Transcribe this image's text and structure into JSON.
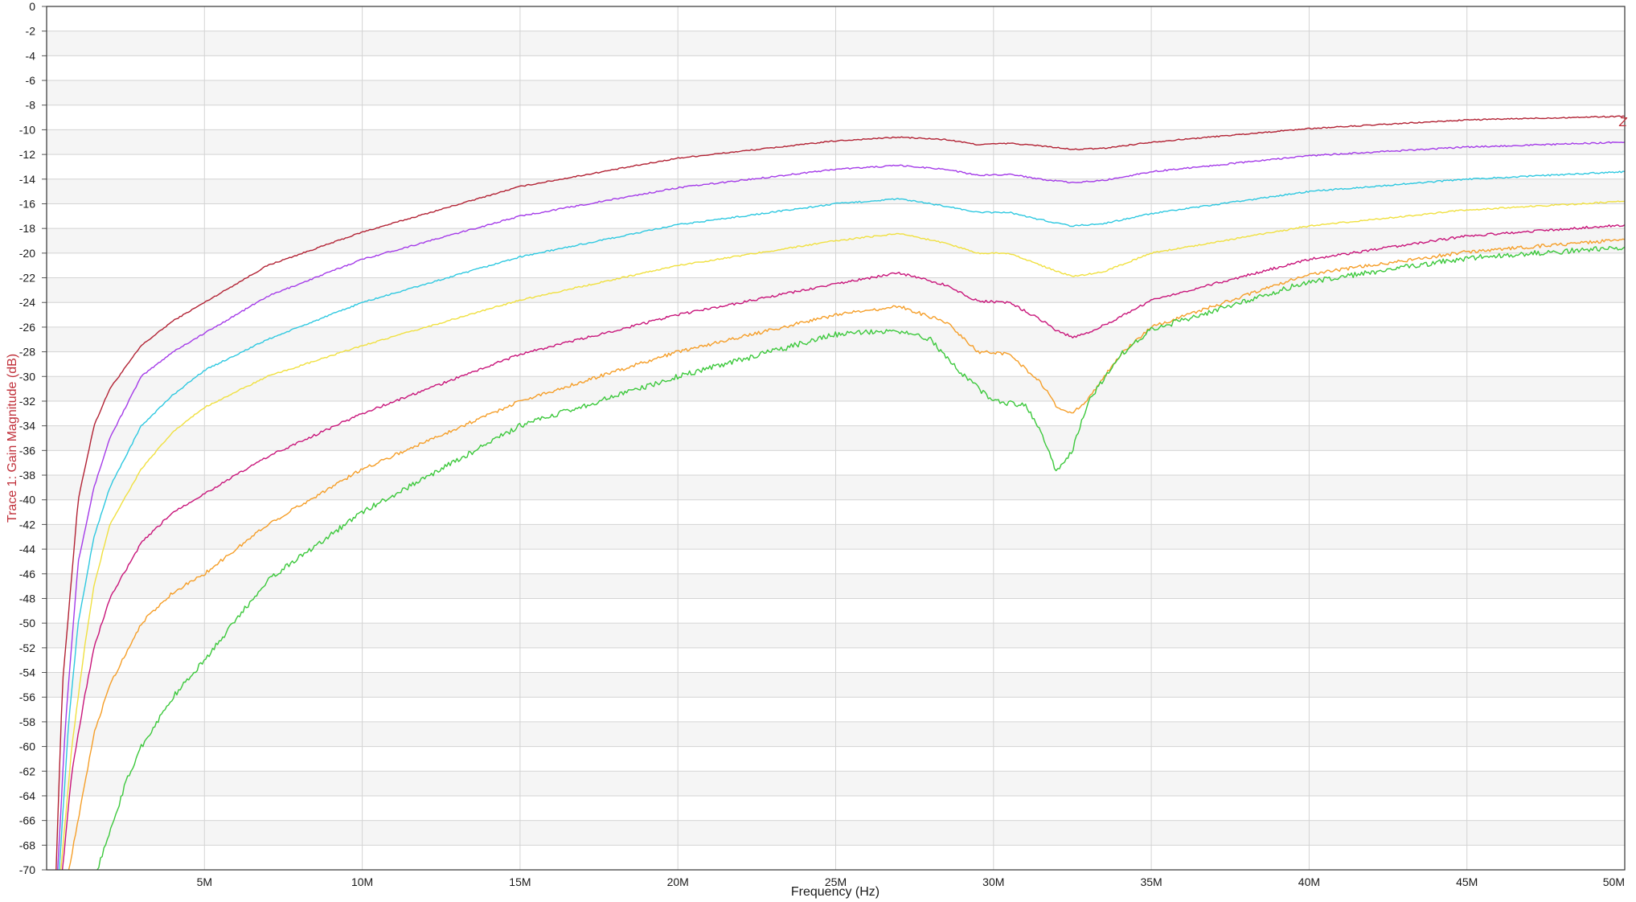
{
  "chart_data": {
    "type": "line",
    "xlabel": "Frequency (Hz)",
    "ylabel": "Trace 1: Gain Magnitude (dB)",
    "ylabel_color": "#c0303a",
    "xlim": [
      0,
      50000000
    ],
    "ylim": [
      -70,
      0
    ],
    "grid": true,
    "legend": "none",
    "x_ticks": [
      5000000,
      10000000,
      15000000,
      20000000,
      25000000,
      30000000,
      35000000,
      40000000,
      45000000,
      50000000
    ],
    "x_tick_labels": [
      "5M",
      "10M",
      "15M",
      "20M",
      "25M",
      "30M",
      "35M",
      "40M",
      "45M",
      "50M"
    ],
    "y_ticks": [
      0,
      -2,
      -4,
      -6,
      -8,
      -10,
      -12,
      -14,
      -16,
      -18,
      -20,
      -22,
      -24,
      -26,
      -28,
      -30,
      -32,
      -34,
      -36,
      -38,
      -40,
      -42,
      -44,
      -46,
      -48,
      -50,
      -52,
      -54,
      -56,
      -58,
      -60,
      -62,
      -64,
      -66,
      -68,
      -70
    ],
    "y_tick_labels": [
      "0",
      "-2",
      "-4",
      "-6",
      "-8",
      "-10",
      "-12",
      "-14",
      "-16",
      "-18",
      "-20",
      "-22",
      "-24",
      "-26",
      "-28",
      "-30",
      "-32",
      "-34",
      "-36",
      "-38",
      "-40",
      "-42",
      "-44",
      "-46",
      "-48",
      "-50",
      "-52",
      "-54",
      "-56",
      "-58",
      "-60",
      "-62",
      "-64",
      "-66",
      "-68",
      "-70"
    ],
    "marker_label": "Z",
    "marker_color": "#c0303a",
    "series": [
      {
        "color": "#b22234",
        "x": [
          300000,
          500000,
          1000000,
          1500000,
          2000000,
          3000000,
          4000000,
          5000000,
          7000000,
          10000000,
          15000000,
          20000000,
          25000000,
          27000000,
          28500000,
          29500000,
          30500000,
          31500000,
          32500000,
          33500000,
          35000000,
          40000000,
          45000000,
          50000000
        ],
        "y": [
          -70,
          -55,
          -40,
          -34,
          -31,
          -27.5,
          -25.5,
          -24,
          -21,
          -18.3,
          -14.6,
          -12.3,
          -10.9,
          -10.6,
          -10.8,
          -11.2,
          -11.1,
          -11.3,
          -11.6,
          -11.5,
          -11,
          -9.9,
          -9.2,
          -8.9
        ]
      },
      {
        "color": "#a43be8",
        "x": [
          350000,
          600000,
          1000000,
          1500000,
          2000000,
          3000000,
          4000000,
          5000000,
          7000000,
          10000000,
          15000000,
          20000000,
          25000000,
          27000000,
          28500000,
          29500000,
          30500000,
          31500000,
          32500000,
          33500000,
          35000000,
          40000000,
          45000000,
          50000000
        ],
        "y": [
          -70,
          -58,
          -45,
          -39,
          -35,
          -30,
          -28,
          -26.5,
          -23.5,
          -20.5,
          -17,
          -14.7,
          -13.2,
          -12.9,
          -13.2,
          -13.7,
          -13.6,
          -14,
          -14.3,
          -14.1,
          -13.4,
          -12.1,
          -11.4,
          -11
        ]
      },
      {
        "color": "#2ec8e0",
        "x": [
          400000,
          700000,
          1000000,
          1500000,
          2000000,
          3000000,
          4000000,
          5000000,
          7000000,
          10000000,
          15000000,
          20000000,
          25000000,
          27000000,
          28500000,
          29500000,
          30500000,
          31500000,
          32500000,
          33500000,
          35000000,
          40000000,
          45000000,
          50000000
        ],
        "y": [
          -70,
          -58,
          -50,
          -43,
          -39,
          -34,
          -31.5,
          -29.5,
          -27,
          -24,
          -20.3,
          -17.7,
          -16,
          -15.6,
          -16.2,
          -16.7,
          -16.7,
          -17.3,
          -17.8,
          -17.6,
          -16.8,
          -15,
          -14,
          -13.4
        ]
      },
      {
        "color": "#f0e040",
        "x": [
          450000,
          800000,
          1200000,
          1500000,
          2000000,
          3000000,
          4000000,
          5000000,
          7000000,
          10000000,
          15000000,
          20000000,
          25000000,
          27000000,
          28500000,
          29500000,
          30500000,
          31500000,
          32500000,
          33500000,
          35000000,
          40000000,
          45000000,
          50000000
        ],
        "y": [
          -70,
          -60,
          -52,
          -47,
          -42,
          -37.5,
          -34.5,
          -32.5,
          -30,
          -27.5,
          -23.8,
          -21,
          -19,
          -18.4,
          -19.2,
          -20,
          -20,
          -21,
          -21.9,
          -21.5,
          -20,
          -17.8,
          -16.5,
          -15.8
        ]
      },
      {
        "color": "#c8157a",
        "x": [
          500000,
          800000,
          1200000,
          1500000,
          2000000,
          3000000,
          4000000,
          5000000,
          7000000,
          10000000,
          15000000,
          20000000,
          25000000,
          27000000,
          28500000,
          29500000,
          30500000,
          31500000,
          32000000,
          32500000,
          33000000,
          34000000,
          35000000,
          40000000,
          45000000,
          50000000
        ],
        "y": [
          -70,
          -62,
          -56,
          -52,
          -48,
          -43.5,
          -41,
          -39.5,
          -36.5,
          -33,
          -28.2,
          -25,
          -22.5,
          -21.6,
          -22.6,
          -23.9,
          -24,
          -25.4,
          -26.3,
          -26.8,
          -26.5,
          -25.2,
          -23.8,
          -20.5,
          -18.6,
          -17.7
        ]
      },
      {
        "color": "#f59e28",
        "x": [
          700000,
          1000000,
          1500000,
          2000000,
          3000000,
          4000000,
          5000000,
          7000000,
          10000000,
          15000000,
          20000000,
          25000000,
          27000000,
          28500000,
          29500000,
          30500000,
          31500000,
          32000000,
          32500000,
          33000000,
          34000000,
          35000000,
          40000000,
          45000000,
          50000000
        ],
        "y": [
          -70,
          -66,
          -59,
          -55,
          -50,
          -47.5,
          -46,
          -42,
          -37.5,
          -32,
          -28,
          -25,
          -24.3,
          -25.6,
          -28,
          -28.2,
          -30.5,
          -32.4,
          -33,
          -31.8,
          -28.3,
          -26,
          -21.7,
          -19.9,
          -18.9
        ]
      },
      {
        "color": "#3cc83c",
        "x": [
          1600000,
          2000000,
          2500000,
          3000000,
          4000000,
          5000000,
          7000000,
          10000000,
          15000000,
          20000000,
          25000000,
          27000000,
          28000000,
          29000000,
          30000000,
          31000000,
          31500000,
          32000000,
          32500000,
          33000000,
          34000000,
          35000000,
          40000000,
          45000000,
          50000000
        ],
        "y": [
          -70,
          -67,
          -63,
          -60,
          -56,
          -53,
          -46.5,
          -41,
          -34,
          -30,
          -26.6,
          -26.3,
          -27,
          -29.8,
          -32,
          -32.3,
          -34.5,
          -37.8,
          -36,
          -32,
          -28.3,
          -26.2,
          -22.3,
          -20.4,
          -19.5
        ]
      }
    ]
  }
}
